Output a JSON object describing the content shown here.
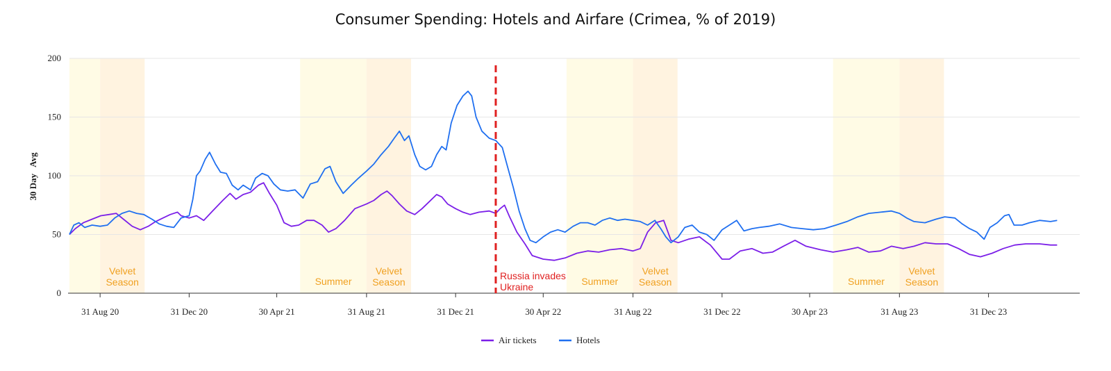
{
  "chart_data": {
    "type": "line",
    "title": "Consumer Spending: Hotels and Airfare (Crimea, % of 2019)",
    "ylabel": "30 Day   Avg",
    "xlabel": "",
    "ylim": [
      0,
      200
    ],
    "yticks": [
      0,
      50,
      100,
      150,
      200
    ],
    "xlim": [
      "2020-07-20",
      "2024-05-04"
    ],
    "xticks": [
      {
        "date": "2020-08-31",
        "label": "31 Aug 20"
      },
      {
        "date": "2020-12-31",
        "label": "31 Dec 20"
      },
      {
        "date": "2021-04-30",
        "label": "30 Apr 21"
      },
      {
        "date": "2021-08-31",
        "label": "31 Aug 21"
      },
      {
        "date": "2021-12-31",
        "label": "31 Dec 21"
      },
      {
        "date": "2022-04-30",
        "label": "30 Apr 22"
      },
      {
        "date": "2022-08-31",
        "label": "31 Aug 22"
      },
      {
        "date": "2022-12-31",
        "label": "31 Dec 22"
      },
      {
        "date": "2023-04-30",
        "label": "30 Apr 23"
      },
      {
        "date": "2023-08-31",
        "label": "31 Aug 23"
      },
      {
        "date": "2023-12-31",
        "label": "31 Dec 23"
      }
    ],
    "grid": true,
    "legend_position": "bottom-center",
    "bands": [
      {
        "start": "2020-07-20",
        "end": "2020-08-31",
        "label": "",
        "color": "#fffbe5"
      },
      {
        "start": "2020-08-31",
        "end": "2020-10-31",
        "label": "Velvet Season",
        "color": "#fff3e0"
      },
      {
        "start": "2021-06-01",
        "end": "2021-08-31",
        "label": "Summer",
        "color": "#fffbe5"
      },
      {
        "start": "2021-08-31",
        "end": "2021-10-31",
        "label": "Velvet Season",
        "color": "#fff3e0"
      },
      {
        "start": "2022-06-01",
        "end": "2022-08-31",
        "label": "Summer",
        "color": "#fffbe5"
      },
      {
        "start": "2022-08-31",
        "end": "2022-10-31",
        "label": "Velvet Season",
        "color": "#fff3e0"
      },
      {
        "start": "2023-06-01",
        "end": "2023-08-31",
        "label": "Summer",
        "color": "#fffbe5"
      },
      {
        "start": "2023-08-31",
        "end": "2023-10-31",
        "label": "Velvet Season",
        "color": "#fff3e0"
      }
    ],
    "events": [
      {
        "date": "2022-02-24",
        "label": [
          "Russia invades",
          "Ukraine"
        ],
        "color": "#e02020"
      }
    ],
    "series": [
      {
        "name": "Air tickets",
        "color": "#7b1fe8",
        "points": [
          [
            "2020-07-20",
            50
          ],
          [
            "2020-07-28",
            55
          ],
          [
            "2020-08-08",
            60
          ],
          [
            "2020-08-20",
            63
          ],
          [
            "2020-09-01",
            66
          ],
          [
            "2020-09-12",
            67
          ],
          [
            "2020-09-22",
            68
          ],
          [
            "2020-10-02",
            63
          ],
          [
            "2020-10-14",
            57
          ],
          [
            "2020-10-25",
            54
          ],
          [
            "2020-11-05",
            57
          ],
          [
            "2020-11-15",
            61
          ],
          [
            "2020-11-25",
            64
          ],
          [
            "2020-12-05",
            67
          ],
          [
            "2020-12-15",
            69
          ],
          [
            "2020-12-20",
            66
          ],
          [
            "2020-12-31",
            64
          ],
          [
            "2021-01-10",
            66
          ],
          [
            "2021-01-20",
            62
          ],
          [
            "2021-02-01",
            70
          ],
          [
            "2021-02-15",
            79
          ],
          [
            "2021-02-25",
            85
          ],
          [
            "2021-03-05",
            80
          ],
          [
            "2021-03-15",
            84
          ],
          [
            "2021-03-25",
            86
          ],
          [
            "2021-04-05",
            92
          ],
          [
            "2021-04-12",
            94
          ],
          [
            "2021-04-20",
            85
          ],
          [
            "2021-04-30",
            75
          ],
          [
            "2021-05-10",
            60
          ],
          [
            "2021-05-20",
            57
          ],
          [
            "2021-05-30",
            58
          ],
          [
            "2021-06-10",
            62
          ],
          [
            "2021-06-20",
            62
          ],
          [
            "2021-07-01",
            58
          ],
          [
            "2021-07-10",
            52
          ],
          [
            "2021-07-20",
            55
          ],
          [
            "2021-08-01",
            62
          ],
          [
            "2021-08-15",
            72
          ],
          [
            "2021-08-31",
            76
          ],
          [
            "2021-09-10",
            79
          ],
          [
            "2021-09-20",
            84
          ],
          [
            "2021-09-28",
            87
          ],
          [
            "2021-10-05",
            83
          ],
          [
            "2021-10-15",
            76
          ],
          [
            "2021-10-25",
            70
          ],
          [
            "2021-11-05",
            67
          ],
          [
            "2021-11-15",
            72
          ],
          [
            "2021-11-25",
            78
          ],
          [
            "2021-12-05",
            84
          ],
          [
            "2021-12-12",
            82
          ],
          [
            "2021-12-20",
            76
          ],
          [
            "2021-12-31",
            72
          ],
          [
            "2022-01-10",
            69
          ],
          [
            "2022-01-20",
            67
          ],
          [
            "2022-02-01",
            69
          ],
          [
            "2022-02-15",
            70
          ],
          [
            "2022-02-24",
            68
          ],
          [
            "2022-03-02",
            72
          ],
          [
            "2022-03-08",
            75
          ],
          [
            "2022-03-15",
            65
          ],
          [
            "2022-03-25",
            52
          ],
          [
            "2022-04-05",
            42
          ],
          [
            "2022-04-15",
            32
          ],
          [
            "2022-04-30",
            29
          ],
          [
            "2022-05-15",
            28
          ],
          [
            "2022-05-30",
            30
          ],
          [
            "2022-06-15",
            34
          ],
          [
            "2022-06-30",
            36
          ],
          [
            "2022-07-15",
            35
          ],
          [
            "2022-07-30",
            37
          ],
          [
            "2022-08-15",
            38
          ],
          [
            "2022-08-31",
            36
          ],
          [
            "2022-09-10",
            38
          ],
          [
            "2022-09-20",
            52
          ],
          [
            "2022-10-01",
            60
          ],
          [
            "2022-10-12",
            62
          ],
          [
            "2022-10-22",
            45
          ],
          [
            "2022-11-01",
            43
          ],
          [
            "2022-11-15",
            46
          ],
          [
            "2022-11-30",
            48
          ],
          [
            "2022-12-15",
            41
          ],
          [
            "2022-12-31",
            29
          ],
          [
            "2023-01-10",
            29
          ],
          [
            "2023-01-25",
            36
          ],
          [
            "2023-02-10",
            38
          ],
          [
            "2023-02-25",
            34
          ],
          [
            "2023-03-10",
            35
          ],
          [
            "2023-03-25",
            40
          ],
          [
            "2023-04-10",
            45
          ],
          [
            "2023-04-25",
            40
          ],
          [
            "2023-05-15",
            37
          ],
          [
            "2023-06-01",
            35
          ],
          [
            "2023-06-20",
            37
          ],
          [
            "2023-07-05",
            39
          ],
          [
            "2023-07-20",
            35
          ],
          [
            "2023-08-05",
            36
          ],
          [
            "2023-08-20",
            40
          ],
          [
            "2023-09-05",
            38
          ],
          [
            "2023-09-20",
            40
          ],
          [
            "2023-10-05",
            43
          ],
          [
            "2023-10-20",
            42
          ],
          [
            "2023-11-05",
            42
          ],
          [
            "2023-11-20",
            38
          ],
          [
            "2023-12-05",
            33
          ],
          [
            "2023-12-20",
            31
          ],
          [
            "2024-01-05",
            34
          ],
          [
            "2024-01-20",
            38
          ],
          [
            "2024-02-05",
            41
          ],
          [
            "2024-02-20",
            42
          ],
          [
            "2024-03-10",
            42
          ],
          [
            "2024-03-25",
            41
          ],
          [
            "2024-04-03",
            41
          ]
        ]
      },
      {
        "name": "Hotels",
        "color": "#1f6ff0",
        "points": [
          [
            "2020-07-20",
            50
          ],
          [
            "2020-07-26",
            58
          ],
          [
            "2020-08-02",
            60
          ],
          [
            "2020-08-10",
            56
          ],
          [
            "2020-08-20",
            58
          ],
          [
            "2020-08-31",
            57
          ],
          [
            "2020-09-10",
            58
          ],
          [
            "2020-09-20",
            64
          ],
          [
            "2020-09-30",
            68
          ],
          [
            "2020-10-10",
            70
          ],
          [
            "2020-10-20",
            68
          ],
          [
            "2020-10-30",
            67
          ],
          [
            "2020-11-10",
            63
          ],
          [
            "2020-11-20",
            59
          ],
          [
            "2020-11-30",
            57
          ],
          [
            "2020-12-10",
            56
          ],
          [
            "2020-12-20",
            64
          ],
          [
            "2020-12-31",
            66
          ],
          [
            "2021-01-05",
            80
          ],
          [
            "2021-01-10",
            100
          ],
          [
            "2021-01-15",
            104
          ],
          [
            "2021-01-22",
            114
          ],
          [
            "2021-01-28",
            120
          ],
          [
            "2021-02-05",
            110
          ],
          [
            "2021-02-12",
            103
          ],
          [
            "2021-02-20",
            102
          ],
          [
            "2021-02-28",
            92
          ],
          [
            "2021-03-08",
            88
          ],
          [
            "2021-03-15",
            92
          ],
          [
            "2021-03-25",
            88
          ],
          [
            "2021-04-01",
            98
          ],
          [
            "2021-04-10",
            102
          ],
          [
            "2021-04-18",
            100
          ],
          [
            "2021-04-26",
            93
          ],
          [
            "2021-05-05",
            88
          ],
          [
            "2021-05-15",
            87
          ],
          [
            "2021-05-25",
            88
          ],
          [
            "2021-06-05",
            81
          ],
          [
            "2021-06-15",
            93
          ],
          [
            "2021-06-25",
            95
          ],
          [
            "2021-07-05",
            106
          ],
          [
            "2021-07-12",
            108
          ],
          [
            "2021-07-20",
            95
          ],
          [
            "2021-07-30",
            85
          ],
          [
            "2021-08-10",
            92
          ],
          [
            "2021-08-20",
            98
          ],
          [
            "2021-08-31",
            104
          ],
          [
            "2021-09-10",
            110
          ],
          [
            "2021-09-20",
            118
          ],
          [
            "2021-09-30",
            125
          ],
          [
            "2021-10-08",
            132
          ],
          [
            "2021-10-15",
            138
          ],
          [
            "2021-10-22",
            130
          ],
          [
            "2021-10-28",
            134
          ],
          [
            "2021-11-05",
            118
          ],
          [
            "2021-11-12",
            108
          ],
          [
            "2021-11-20",
            105
          ],
          [
            "2021-11-28",
            108
          ],
          [
            "2021-12-05",
            118
          ],
          [
            "2021-12-12",
            125
          ],
          [
            "2021-12-18",
            122
          ],
          [
            "2021-12-25",
            145
          ],
          [
            "2022-01-02",
            160
          ],
          [
            "2022-01-10",
            168
          ],
          [
            "2022-01-17",
            172
          ],
          [
            "2022-01-22",
            168
          ],
          [
            "2022-01-28",
            150
          ],
          [
            "2022-02-05",
            138
          ],
          [
            "2022-02-15",
            132
          ],
          [
            "2022-02-24",
            130
          ],
          [
            "2022-03-05",
            124
          ],
          [
            "2022-03-12",
            108
          ],
          [
            "2022-03-20",
            90
          ],
          [
            "2022-03-28",
            70
          ],
          [
            "2022-04-05",
            55
          ],
          [
            "2022-04-12",
            45
          ],
          [
            "2022-04-20",
            43
          ],
          [
            "2022-04-30",
            48
          ],
          [
            "2022-05-10",
            52
          ],
          [
            "2022-05-20",
            54
          ],
          [
            "2022-05-30",
            52
          ],
          [
            "2022-06-10",
            57
          ],
          [
            "2022-06-20",
            60
          ],
          [
            "2022-06-30",
            60
          ],
          [
            "2022-07-10",
            58
          ],
          [
            "2022-07-20",
            62
          ],
          [
            "2022-07-30",
            64
          ],
          [
            "2022-08-10",
            62
          ],
          [
            "2022-08-20",
            63
          ],
          [
            "2022-08-31",
            62
          ],
          [
            "2022-09-10",
            61
          ],
          [
            "2022-09-20",
            58
          ],
          [
            "2022-09-30",
            62
          ],
          [
            "2022-10-08",
            55
          ],
          [
            "2022-10-15",
            48
          ],
          [
            "2022-10-22",
            43
          ],
          [
            "2022-11-01",
            48
          ],
          [
            "2022-11-10",
            56
          ],
          [
            "2022-11-20",
            58
          ],
          [
            "2022-11-30",
            52
          ],
          [
            "2022-12-10",
            50
          ],
          [
            "2022-12-20",
            45
          ],
          [
            "2022-12-31",
            54
          ],
          [
            "2023-01-10",
            58
          ],
          [
            "2023-01-20",
            62
          ],
          [
            "2023-01-30",
            53
          ],
          [
            "2023-02-10",
            55
          ],
          [
            "2023-02-20",
            56
          ],
          [
            "2023-03-05",
            57
          ],
          [
            "2023-03-20",
            59
          ],
          [
            "2023-04-05",
            56
          ],
          [
            "2023-04-20",
            55
          ],
          [
            "2023-05-05",
            54
          ],
          [
            "2023-05-20",
            55
          ],
          [
            "2023-06-05",
            58
          ],
          [
            "2023-06-20",
            61
          ],
          [
            "2023-07-05",
            65
          ],
          [
            "2023-07-20",
            68
          ],
          [
            "2023-08-05",
            69
          ],
          [
            "2023-08-20",
            70
          ],
          [
            "2023-08-31",
            68
          ],
          [
            "2023-09-10",
            64
          ],
          [
            "2023-09-20",
            61
          ],
          [
            "2023-10-05",
            60
          ],
          [
            "2023-10-20",
            63
          ],
          [
            "2023-11-01",
            65
          ],
          [
            "2023-11-15",
            64
          ],
          [
            "2023-11-25",
            59
          ],
          [
            "2023-12-05",
            55
          ],
          [
            "2023-12-15",
            52
          ],
          [
            "2023-12-25",
            46
          ],
          [
            "2024-01-02",
            56
          ],
          [
            "2024-01-12",
            60
          ],
          [
            "2024-01-22",
            66
          ],
          [
            "2024-01-28",
            67
          ],
          [
            "2024-02-04",
            58
          ],
          [
            "2024-02-15",
            58
          ],
          [
            "2024-02-25",
            60
          ],
          [
            "2024-03-10",
            62
          ],
          [
            "2024-03-25",
            61
          ],
          [
            "2024-04-03",
            62
          ]
        ]
      }
    ]
  }
}
